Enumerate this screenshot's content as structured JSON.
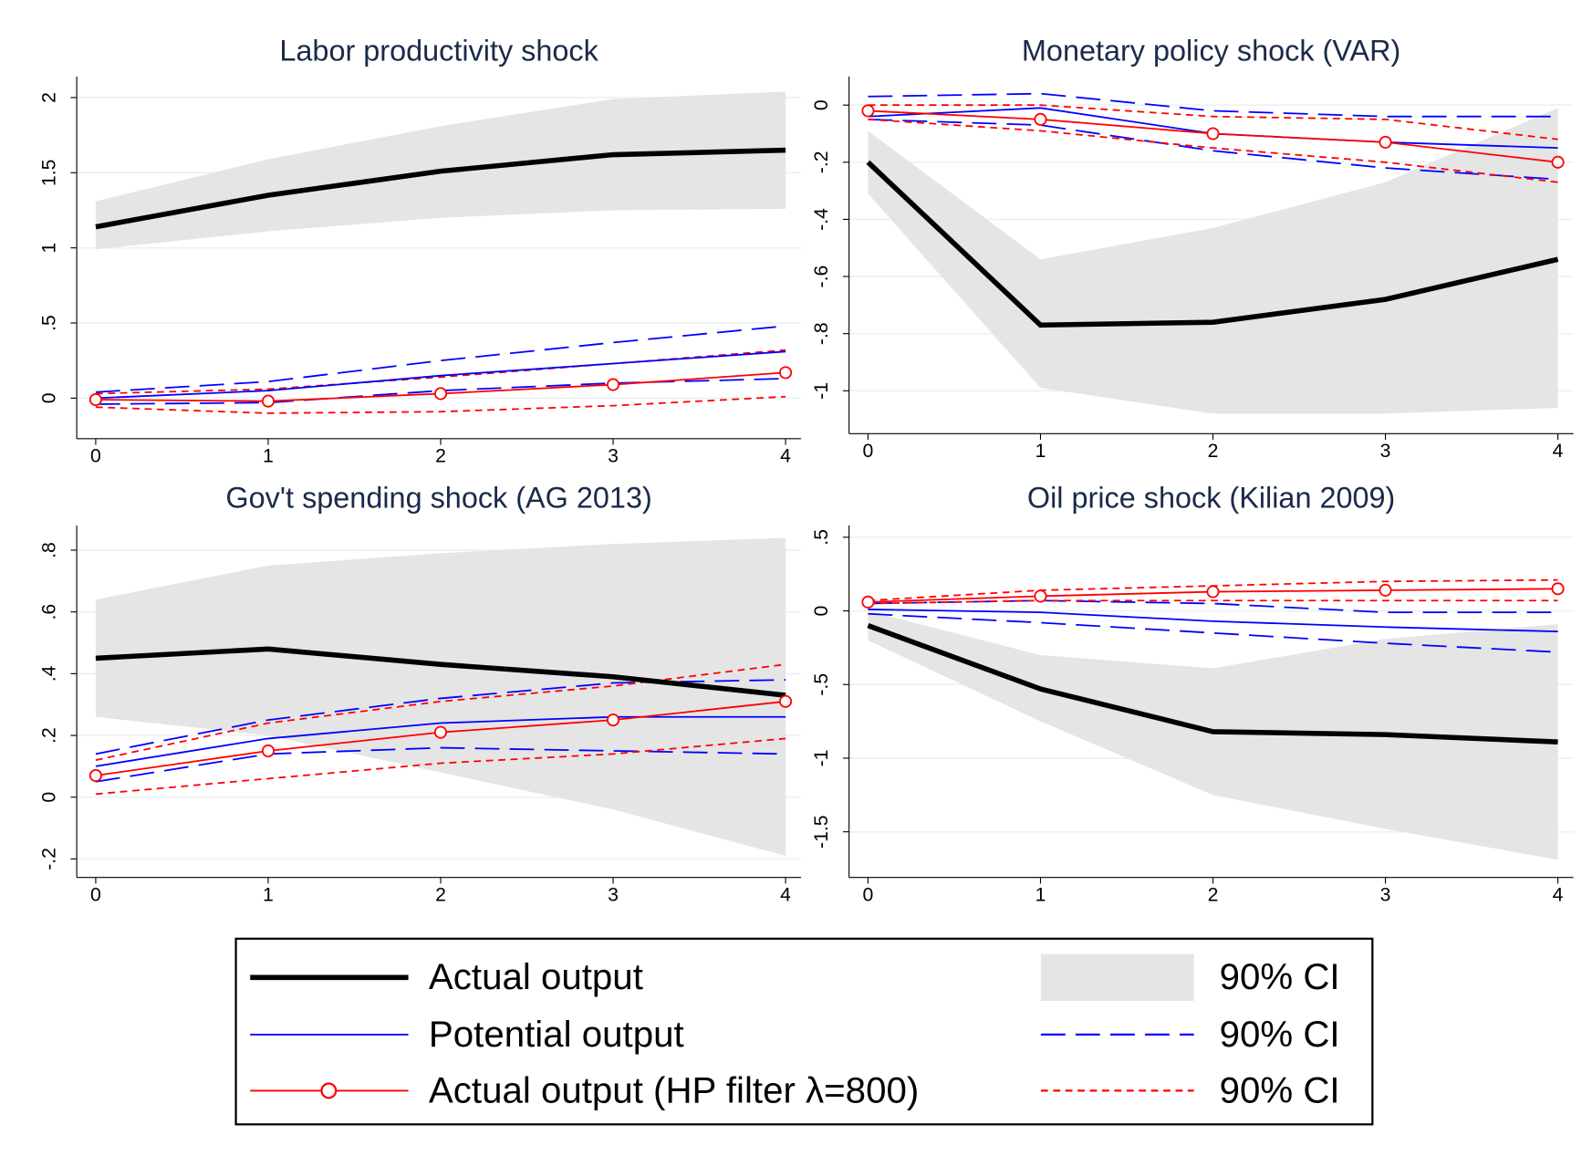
{
  "chart_data": [
    {
      "type": "line",
      "title": "Labor productivity shock",
      "x": [
        0,
        1,
        2,
        3,
        4
      ],
      "xlim": [
        -0.11,
        4.09
      ],
      "xticks": [
        0,
        1,
        2,
        3,
        4
      ],
      "ylim": [
        -0.27,
        2.14
      ],
      "yticks": [
        0,
        {
          "value": 0.5,
          "label": ".5"
        },
        1,
        1.5,
        2
      ],
      "series": [
        {
          "name": "Actual output",
          "color": "#000000",
          "values": [
            1.14,
            1.35,
            1.51,
            1.62,
            1.65
          ],
          "ci_name": "90% CI",
          "ci_color": "#e5e5e5",
          "ci_lower": [
            0.99,
            1.11,
            1.2,
            1.25,
            1.26
          ],
          "ci_upper": [
            1.31,
            1.59,
            1.81,
            1.99,
            2.04
          ]
        },
        {
          "name": "Potential output",
          "color": "#0000ff",
          "values": [
            0,
            0.05,
            0.15,
            0.23,
            0.31
          ],
          "ci_name": "90% CI",
          "ci_lower": [
            -0.04,
            -0.03,
            0.05,
            0.1,
            0.13
          ],
          "ci_upper": [
            0.04,
            0.11,
            0.25,
            0.37,
            0.48
          ]
        },
        {
          "name": "Actual output (HP filter λ=800)",
          "color": "#ff0000",
          "values": [
            -0.01,
            -0.02,
            0.03,
            0.09,
            0.17
          ],
          "ci_name": "90% CI",
          "ci_lower": [
            -0.06,
            -0.1,
            -0.09,
            -0.05,
            0.01
          ],
          "ci_upper": [
            0.03,
            0.06,
            0.14,
            0.23,
            0.32
          ]
        }
      ]
    },
    {
      "type": "line",
      "title": "Monetary policy shock (VAR)",
      "x": [
        0,
        1,
        2,
        3,
        4
      ],
      "xlim": [
        -0.11,
        4.09
      ],
      "xticks": [
        0,
        1,
        2,
        3,
        4
      ],
      "ylim": [
        -1.15,
        0.1
      ],
      "yticks": [
        0,
        {
          "value": -0.2,
          "label": "-.2"
        },
        {
          "value": -0.4,
          "label": "-.4"
        },
        {
          "value": -0.6,
          "label": "-.6"
        },
        {
          "value": -0.8,
          "label": "-.8"
        },
        -1
      ],
      "series": [
        {
          "color": "#000000",
          "values": [
            -0.2,
            -0.77,
            -0.76,
            -0.68,
            -0.54
          ],
          "ci_color": "#e5e5e5",
          "ci_lower": [
            -0.31,
            -0.99,
            -1.08,
            -1.08,
            -1.06
          ],
          "ci_upper": [
            -0.09,
            -0.54,
            -0.43,
            -0.27,
            -0.01
          ]
        },
        {
          "color": "#0000ff",
          "values": [
            -0.04,
            -0.01,
            -0.1,
            -0.13,
            -0.15
          ],
          "ci_lower": [
            -0.05,
            -0.07,
            -0.16,
            -0.22,
            -0.26
          ],
          "ci_upper": [
            0.03,
            0.04,
            -0.02,
            -0.04,
            -0.04
          ]
        },
        {
          "color": "#ff0000",
          "values": [
            -0.02,
            -0.05,
            -0.1,
            -0.13,
            -0.2
          ],
          "ci_lower": [
            -0.05,
            -0.09,
            -0.15,
            -0.2,
            -0.27
          ],
          "ci_upper": [
            0.0,
            0.0,
            -0.04,
            -0.05,
            -0.12
          ]
        }
      ]
    },
    {
      "type": "line",
      "title": "Gov't spending shock (AG 2013)",
      "x": [
        0,
        1,
        2,
        3,
        4
      ],
      "xlim": [
        -0.11,
        4.09
      ],
      "xticks": [
        0,
        1,
        2,
        3,
        4
      ],
      "ylim": [
        -0.26,
        0.88
      ],
      "yticks": [
        {
          "value": -0.2,
          "label": "-.2"
        },
        0,
        {
          "value": 0.2,
          "label": ".2"
        },
        {
          "value": 0.4,
          "label": ".4"
        },
        {
          "value": 0.6,
          "label": ".6"
        },
        {
          "value": 0.8,
          "label": ".8"
        }
      ],
      "series": [
        {
          "color": "#000000",
          "values": [
            0.45,
            0.48,
            0.43,
            0.39,
            0.33
          ],
          "ci_color": "#e5e5e5",
          "ci_lower": [
            0.26,
            0.2,
            0.08,
            -0.04,
            -0.19
          ],
          "ci_upper": [
            0.64,
            0.75,
            0.79,
            0.82,
            0.84
          ]
        },
        {
          "color": "#0000ff",
          "values": [
            0.1,
            0.19,
            0.24,
            0.26,
            0.26
          ],
          "ci_lower": [
            0.05,
            0.14,
            0.16,
            0.15,
            0.14
          ],
          "ci_upper": [
            0.14,
            0.25,
            0.32,
            0.37,
            0.38
          ]
        },
        {
          "color": "#ff0000",
          "values": [
            0.07,
            0.15,
            0.21,
            0.25,
            0.31
          ],
          "ci_lower": [
            0.01,
            0.06,
            0.11,
            0.14,
            0.19
          ],
          "ci_upper": [
            0.12,
            0.24,
            0.31,
            0.36,
            0.43
          ]
        }
      ]
    },
    {
      "type": "line",
      "title": "Oil price shock (Kilian 2009)",
      "x": [
        0,
        1,
        2,
        3,
        4
      ],
      "xlim": [
        -0.11,
        4.09
      ],
      "xticks": [
        0,
        1,
        2,
        3,
        4
      ],
      "ylim": [
        -1.81,
        0.58
      ],
      "yticks": [
        {
          "value": -1.5,
          "label": "-1.5"
        },
        -1,
        {
          "value": -0.5,
          "label": "-.5"
        },
        0,
        {
          "value": 0.5,
          "label": ".5"
        }
      ],
      "series": [
        {
          "color": "#000000",
          "values": [
            -0.1,
            -0.53,
            -0.82,
            -0.84,
            -0.89
          ],
          "ci_color": "#e5e5e5",
          "ci_lower": [
            -0.2,
            -0.75,
            -1.25,
            -1.48,
            -1.69
          ],
          "ci_upper": [
            0,
            -0.3,
            -0.39,
            -0.19,
            -0.09
          ]
        },
        {
          "color": "#0000ff",
          "values": [
            0.01,
            -0.01,
            -0.07,
            -0.11,
            -0.14
          ],
          "ci_lower": [
            -0.02,
            -0.08,
            -0.15,
            -0.22,
            -0.28
          ],
          "ci_upper": [
            0.05,
            0.07,
            0.05,
            -0.01,
            -0.01
          ]
        },
        {
          "color": "#ff0000",
          "values": [
            0.06,
            0.1,
            0.13,
            0.14,
            0.15
          ],
          "ci_lower": [
            0.05,
            0.07,
            0.07,
            0.07,
            0.07
          ],
          "ci_upper": [
            0.07,
            0.14,
            0.17,
            0.2,
            0.21
          ]
        }
      ]
    }
  ]
}
